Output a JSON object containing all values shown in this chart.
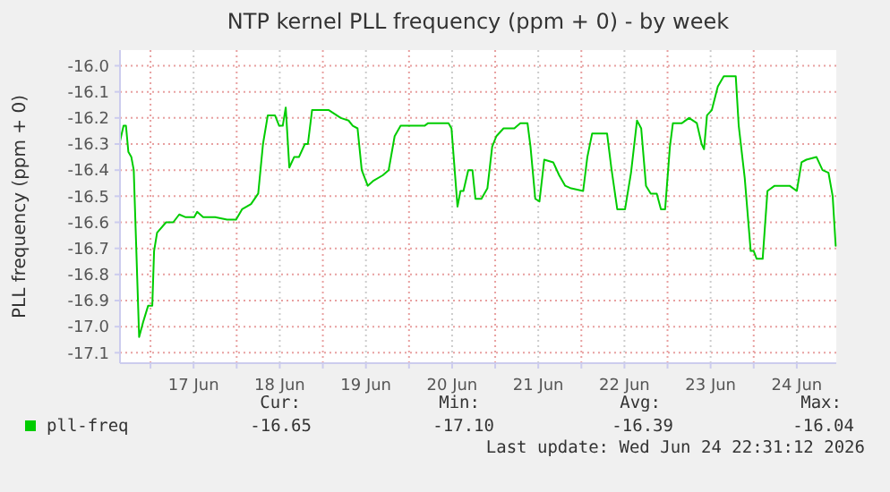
{
  "chart_data": {
    "type": "line",
    "title": "NTP kernel PLL frequency (ppm + 0) - by week",
    "ylabel": "PLL frequency (ppm + 0)",
    "x": [
      "2026-06-16T15:30",
      "2026-06-16T16:30",
      "2026-06-16T17:10",
      "2026-06-16T17:50",
      "2026-06-16T18:40",
      "2026-06-16T19:20",
      "2026-06-16T20:50",
      "2026-06-16T22:00",
      "2026-06-16T23:20",
      "2026-06-17T00:30",
      "2026-06-17T01:00",
      "2026-06-17T01:50",
      "2026-06-17T04:20",
      "2026-06-17T06:20",
      "2026-06-17T08:00",
      "2026-06-17T09:40",
      "2026-06-17T12:10",
      "2026-06-17T13:00",
      "2026-06-17T14:40",
      "2026-06-17T18:00",
      "2026-06-17T21:20",
      "2026-06-17T23:50",
      "2026-06-18T01:30",
      "2026-06-18T04:00",
      "2026-06-18T06:00",
      "2026-06-18T07:20",
      "2026-06-18T08:40",
      "2026-06-18T10:40",
      "2026-06-18T11:50",
      "2026-06-18T12:50",
      "2026-06-18T13:40",
      "2026-06-18T14:40",
      "2026-06-18T16:00",
      "2026-06-18T17:20",
      "2026-06-18T19:00",
      "2026-06-18T19:50",
      "2026-06-18T21:00",
      "2026-06-18T22:20",
      "2026-06-19T01:40",
      "2026-06-19T05:00",
      "2026-06-19T07:10",
      "2026-06-19T08:20",
      "2026-06-19T09:40",
      "2026-06-19T10:50",
      "2026-06-19T12:30",
      "2026-06-19T14:10",
      "2026-06-19T16:40",
      "2026-06-19T18:20",
      "2026-06-19T20:00",
      "2026-06-19T21:40",
      "2026-06-20T01:00",
      "2026-06-20T04:20",
      "2026-06-20T05:20",
      "2026-06-20T09:20",
      "2026-06-20T11:00",
      "2026-06-20T11:50",
      "2026-06-20T13:30",
      "2026-06-20T14:20",
      "2026-06-20T15:10",
      "2026-06-20T16:30",
      "2026-06-20T17:40",
      "2026-06-20T18:30",
      "2026-06-20T20:10",
      "2026-06-20T21:50",
      "2026-06-20T23:10",
      "2026-06-21T00:20",
      "2026-06-21T02:20",
      "2026-06-21T05:20",
      "2026-06-21T07:00",
      "2026-06-21T09:00",
      "2026-06-21T09:50",
      "2026-06-21T11:10",
      "2026-06-21T12:20",
      "2026-06-21T13:40",
      "2026-06-21T16:10",
      "2026-06-21T17:50",
      "2026-06-21T19:30",
      "2026-06-21T21:10",
      "2026-06-22T00:30",
      "2026-06-22T01:40",
      "2026-06-22T03:00",
      "2026-06-22T07:10",
      "2026-06-22T08:20",
      "2026-06-22T10:00",
      "2026-06-22T12:10",
      "2026-06-22T13:50",
      "2026-06-22T15:30",
      "2026-06-22T16:40",
      "2026-06-22T18:00",
      "2026-06-22T19:20",
      "2026-06-22T21:00",
      "2026-06-22T22:10",
      "2026-06-22T23:20",
      "2026-06-23T00:40",
      "2026-06-23T01:30",
      "2026-06-23T04:00",
      "2026-06-23T06:00",
      "2026-06-23T08:10",
      "2026-06-23T09:30",
      "2026-06-23T10:10",
      "2026-06-23T11:00",
      "2026-06-23T12:20",
      "2026-06-23T14:00",
      "2026-06-23T15:40",
      "2026-06-23T19:00",
      "2026-06-23T19:50",
      "2026-06-23T21:30",
      "2026-06-23T23:10",
      "2026-06-24T00:00",
      "2026-06-24T00:50",
      "2026-06-24T02:30",
      "2026-06-24T03:50",
      "2026-06-24T05:50",
      "2026-06-24T10:00",
      "2026-06-24T12:00",
      "2026-06-24T13:20",
      "2026-06-24T14:40",
      "2026-06-24T17:30",
      "2026-06-24T19:10",
      "2026-06-24T20:50",
      "2026-06-24T22:00",
      "2026-06-24T22:50"
    ],
    "series": [
      {
        "name": "pll-freq",
        "color": "#00cc00",
        "values": [
          -16.29,
          -16.23,
          -16.23,
          -16.33,
          -16.35,
          -16.4,
          -17.04,
          -16.98,
          -16.92,
          -16.92,
          -16.71,
          -16.64,
          -16.6,
          -16.6,
          -16.57,
          -16.58,
          -16.58,
          -16.56,
          -16.58,
          -16.58,
          -16.59,
          -16.59,
          -16.55,
          -16.53,
          -16.49,
          -16.3,
          -16.19,
          -16.19,
          -16.23,
          -16.23,
          -16.16,
          -16.39,
          -16.35,
          -16.35,
          -16.3,
          -16.3,
          -16.17,
          -16.17,
          -16.17,
          -16.2,
          -16.21,
          -16.23,
          -16.24,
          -16.4,
          -16.46,
          -16.44,
          -16.42,
          -16.4,
          -16.27,
          -16.23,
          -16.23,
          -16.23,
          -16.22,
          -16.22,
          -16.22,
          -16.24,
          -16.54,
          -16.48,
          -16.48,
          -16.4,
          -16.4,
          -16.51,
          -16.51,
          -16.47,
          -16.31,
          -16.27,
          -16.24,
          -16.24,
          -16.22,
          -16.22,
          -16.31,
          -16.51,
          -16.52,
          -16.36,
          -16.37,
          -16.42,
          -16.46,
          -16.47,
          -16.48,
          -16.35,
          -16.26,
          -16.26,
          -16.39,
          -16.55,
          -16.55,
          -16.41,
          -16.21,
          -16.24,
          -16.46,
          -16.49,
          -16.49,
          -16.55,
          -16.55,
          -16.31,
          -16.22,
          -16.22,
          -16.2,
          -16.22,
          -16.3,
          -16.32,
          -16.19,
          -16.17,
          -16.08,
          -16.04,
          -16.04,
          -16.23,
          -16.43,
          -16.71,
          -16.71,
          -16.74,
          -16.74,
          -16.48,
          -16.46,
          -16.46,
          -16.48,
          -16.37,
          -16.36,
          -16.35,
          -16.4,
          -16.41,
          -16.5,
          -16.69
        ]
      }
    ],
    "xlim": [
      "2026-06-16T15:30",
      "2026-06-24T23:00"
    ],
    "xticks": [
      {
        "value": "2026-06-17T00:00",
        "label": null
      },
      {
        "value": "2026-06-17T12:00",
        "label": "17 Jun"
      },
      {
        "value": "2026-06-18T00:00",
        "label": null
      },
      {
        "value": "2026-06-18T12:00",
        "label": "18 Jun"
      },
      {
        "value": "2026-06-19T00:00",
        "label": null
      },
      {
        "value": "2026-06-19T12:00",
        "label": "19 Jun"
      },
      {
        "value": "2026-06-20T00:00",
        "label": null
      },
      {
        "value": "2026-06-20T12:00",
        "label": "20 Jun"
      },
      {
        "value": "2026-06-21T00:00",
        "label": null
      },
      {
        "value": "2026-06-21T12:00",
        "label": "21 Jun"
      },
      {
        "value": "2026-06-22T00:00",
        "label": null
      },
      {
        "value": "2026-06-22T12:00",
        "label": "22 Jun"
      },
      {
        "value": "2026-06-23T00:00",
        "label": null
      },
      {
        "value": "2026-06-23T12:00",
        "label": "23 Jun"
      },
      {
        "value": "2026-06-24T00:00",
        "label": null
      },
      {
        "value": "2026-06-24T12:00",
        "label": "24 Jun"
      }
    ],
    "ylim": [
      -17.14,
      -15.94
    ],
    "yticks": [
      {
        "value": -16,
        "label": "-16.0"
      },
      -16.1,
      -16.2,
      -16.3,
      -16.4,
      -16.5,
      -16.6,
      -16.7,
      -16.8,
      -16.9,
      {
        "value": -17,
        "label": "-17.0"
      },
      -17.1
    ],
    "grid": true,
    "legend": "bottom",
    "line_style": "solid",
    "marker": "none",
    "annotations": [
      "Cur:",
      "-16.65",
      "Min:",
      "-17.10",
      "Avg:",
      "-16.39",
      "Max:",
      "-16.04",
      "Last update: Wed Jun 24 22:31:12 2026"
    ]
  }
}
